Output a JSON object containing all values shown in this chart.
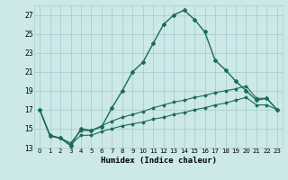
{
  "xlabel": "Humidex (Indice chaleur)",
  "bg_color": "#cce8e8",
  "grid_color": "#aacfcf",
  "line_color": "#1a6b5a",
  "xlim": [
    -0.5,
    23.5
  ],
  "ylim": [
    13,
    28
  ],
  "yticks": [
    13,
    15,
    17,
    19,
    21,
    23,
    25,
    27
  ],
  "xticks": [
    0,
    1,
    2,
    3,
    4,
    5,
    6,
    7,
    8,
    9,
    10,
    11,
    12,
    13,
    14,
    15,
    16,
    17,
    18,
    19,
    20,
    21,
    22,
    23
  ],
  "series": [
    [
      0,
      17.0
    ],
    [
      1,
      14.2
    ],
    [
      2,
      14.0
    ],
    [
      3,
      13.2
    ],
    [
      4,
      15.0
    ],
    [
      5,
      14.8
    ],
    [
      6,
      15.2
    ],
    [
      7,
      17.2
    ],
    [
      8,
      19.0
    ],
    [
      9,
      21.0
    ],
    [
      10,
      22.0
    ],
    [
      11,
      24.0
    ],
    [
      12,
      26.0
    ],
    [
      13,
      27.0
    ],
    [
      14,
      27.5
    ],
    [
      15,
      26.5
    ],
    [
      16,
      25.2
    ],
    [
      17,
      22.2
    ],
    [
      18,
      21.2
    ],
    [
      19,
      20.0
    ],
    [
      20,
      19.0
    ],
    [
      21,
      18.0
    ],
    [
      22,
      18.2
    ],
    [
      23,
      17.0
    ]
  ],
  "line2": [
    [
      0,
      17.0
    ],
    [
      1,
      14.3
    ],
    [
      2,
      14.0
    ],
    [
      3,
      13.5
    ],
    [
      4,
      14.8
    ],
    [
      5,
      14.8
    ],
    [
      6,
      15.3
    ],
    [
      7,
      15.8
    ],
    [
      8,
      16.2
    ],
    [
      9,
      16.5
    ],
    [
      10,
      16.8
    ],
    [
      11,
      17.2
    ],
    [
      12,
      17.5
    ],
    [
      13,
      17.8
    ],
    [
      14,
      18.0
    ],
    [
      15,
      18.3
    ],
    [
      16,
      18.5
    ],
    [
      17,
      18.8
    ],
    [
      18,
      19.0
    ],
    [
      19,
      19.2
    ],
    [
      20,
      19.5
    ],
    [
      21,
      18.2
    ],
    [
      22,
      18.2
    ],
    [
      23,
      17.0
    ]
  ],
  "line3": [
    [
      0,
      17.0
    ],
    [
      1,
      14.3
    ],
    [
      2,
      14.0
    ],
    [
      3,
      13.3
    ],
    [
      4,
      14.3
    ],
    [
      5,
      14.3
    ],
    [
      6,
      14.7
    ],
    [
      7,
      15.0
    ],
    [
      8,
      15.3
    ],
    [
      9,
      15.5
    ],
    [
      10,
      15.7
    ],
    [
      11,
      16.0
    ],
    [
      12,
      16.2
    ],
    [
      13,
      16.5
    ],
    [
      14,
      16.7
    ],
    [
      15,
      17.0
    ],
    [
      16,
      17.2
    ],
    [
      17,
      17.5
    ],
    [
      18,
      17.7
    ],
    [
      19,
      18.0
    ],
    [
      20,
      18.3
    ],
    [
      21,
      17.5
    ],
    [
      22,
      17.5
    ],
    [
      23,
      17.0
    ]
  ]
}
